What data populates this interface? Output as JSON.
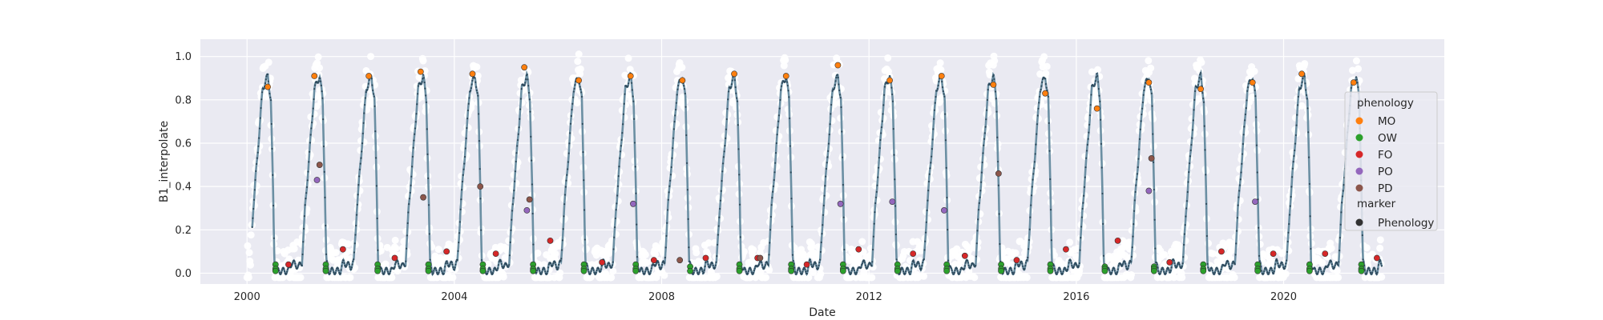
{
  "chart_data": {
    "type": "scatter",
    "xlabel": "Date",
    "ylabel": "B1_interpolate",
    "xlim": [
      1999.1,
      2023.1
    ],
    "ylim": [
      -0.05,
      1.08
    ],
    "x_ticks": [
      2000,
      2004,
      2008,
      2012,
      2016,
      2020
    ],
    "x_tick_labels": [
      "2000",
      "2004",
      "2008",
      "2012",
      "2016",
      "2020"
    ],
    "y_ticks": [
      0.0,
      0.2,
      0.4,
      0.6,
      0.8,
      1.0
    ],
    "y_tick_labels": [
      "0.0",
      "0.2",
      "0.4",
      "0.6",
      "0.8",
      "1.0"
    ],
    "grid": true,
    "legend_placement": "right, outside",
    "legend": {
      "hue_title": "phenology",
      "marker_title": "marker",
      "entries": [
        {
          "label": "MO",
          "color": "#ff7f0e"
        },
        {
          "label": "OW",
          "color": "#2ca02c"
        },
        {
          "label": "FO",
          "color": "#d62728"
        },
        {
          "label": "PO",
          "color": "#9467bd"
        },
        {
          "label": "PD",
          "color": "#8c564b"
        }
      ],
      "marker_entries": [
        {
          "label": "Phenology",
          "color": "#333333"
        }
      ]
    },
    "colors": {
      "line": "#6b8fa3",
      "points_raw": "#ffffff",
      "background": "#eaeaf2",
      "grid": "#ffffff"
    },
    "series": [
      {
        "name": "MO",
        "color": "#ff7f0e",
        "x": [
          2000.4,
          2001.3,
          2002.35,
          2003.35,
          2004.35,
          2005.35,
          2006.4,
          2007.4,
          2008.4,
          2009.4,
          2010.4,
          2011.4,
          2012.4,
          2013.4,
          2014.4,
          2015.4,
          2016.4,
          2017.4,
          2018.4,
          2019.4,
          2020.35,
          2021.35
        ],
        "y": [
          0.86,
          0.91,
          0.91,
          0.93,
          0.92,
          0.95,
          0.89,
          0.91,
          0.89,
          0.92,
          0.91,
          0.96,
          0.89,
          0.91,
          0.87,
          0.83,
          0.76,
          0.88,
          0.85,
          0.88,
          0.92,
          0.88
        ]
      },
      {
        "name": "OW",
        "color": "#2ca02c",
        "x": [
          2000.55,
          2000.55,
          2000.55,
          2001.52,
          2001.52,
          2001.52,
          2002.52,
          2002.52,
          2002.52,
          2003.5,
          2003.5,
          2003.5,
          2004.55,
          2004.55,
          2004.55,
          2005.52,
          2005.52,
          2005.52,
          2006.5,
          2006.5,
          2006.5,
          2007.5,
          2007.5,
          2007.5,
          2008.55,
          2008.55,
          2009.5,
          2009.5,
          2009.5,
          2010.5,
          2010.5,
          2010.5,
          2011.5,
          2011.5,
          2011.5,
          2012.55,
          2012.55,
          2012.55,
          2013.5,
          2013.5,
          2013.5,
          2014.55,
          2014.55,
          2014.55,
          2015.5,
          2015.5,
          2015.5,
          2016.55,
          2016.55,
          2016.55,
          2017.5,
          2017.5,
          2017.5,
          2018.45,
          2018.45,
          2018.45,
          2019.5,
          2019.5,
          2019.5,
          2020.5,
          2020.5,
          2020.5,
          2021.5,
          2021.5,
          2021.5
        ],
        "y": [
          0.04,
          0.02,
          0.01,
          0.04,
          0.02,
          0.01,
          0.04,
          0.02,
          0.01,
          0.04,
          0.02,
          0.01,
          0.04,
          0.02,
          0.01,
          0.04,
          0.02,
          0.01,
          0.04,
          0.02,
          0.01,
          0.04,
          0.02,
          0.01,
          0.03,
          0.01,
          0.04,
          0.02,
          0.01,
          0.04,
          0.02,
          0.01,
          0.04,
          0.02,
          0.01,
          0.04,
          0.02,
          0.01,
          0.04,
          0.02,
          0.01,
          0.04,
          0.02,
          0.01,
          0.04,
          0.02,
          0.01,
          0.03,
          0.02,
          0.01,
          0.03,
          0.02,
          0.01,
          0.04,
          0.02,
          0.01,
          0.04,
          0.02,
          0.01,
          0.04,
          0.02,
          0.01,
          0.04,
          0.02,
          0.01
        ]
      },
      {
        "name": "FO",
        "color": "#d62728",
        "x": [
          2000.8,
          2001.85,
          2002.85,
          2003.85,
          2004.8,
          2005.85,
          2006.85,
          2007.85,
          2008.85,
          2009.85,
          2010.8,
          2011.8,
          2012.85,
          2013.85,
          2014.85,
          2015.8,
          2016.8,
          2017.8,
          2018.8,
          2019.8,
          2020.8,
          2021.8
        ],
        "y": [
          0.04,
          0.11,
          0.07,
          0.1,
          0.09,
          0.15,
          0.05,
          0.06,
          0.07,
          0.07,
          0.04,
          0.11,
          0.09,
          0.08,
          0.06,
          0.11,
          0.15,
          0.05,
          0.1,
          0.09,
          0.09,
          0.07
        ]
      },
      {
        "name": "PO",
        "color": "#9467bd",
        "x": [
          2001.35,
          2005.4,
          2007.45,
          2011.45,
          2012.45,
          2013.45,
          2017.4,
          2019.45
        ],
        "y": [
          0.43,
          0.29,
          0.32,
          0.32,
          0.33,
          0.29,
          0.38,
          0.33
        ]
      },
      {
        "name": "PD",
        "color": "#8c564b",
        "x": [
          2001.4,
          2003.4,
          2004.5,
          2005.45,
          2008.35,
          2009.9,
          2014.5,
          2017.45
        ],
        "y": [
          0.5,
          0.35,
          0.4,
          0.34,
          0.06,
          0.07,
          0.46,
          0.53
        ]
      }
    ]
  }
}
